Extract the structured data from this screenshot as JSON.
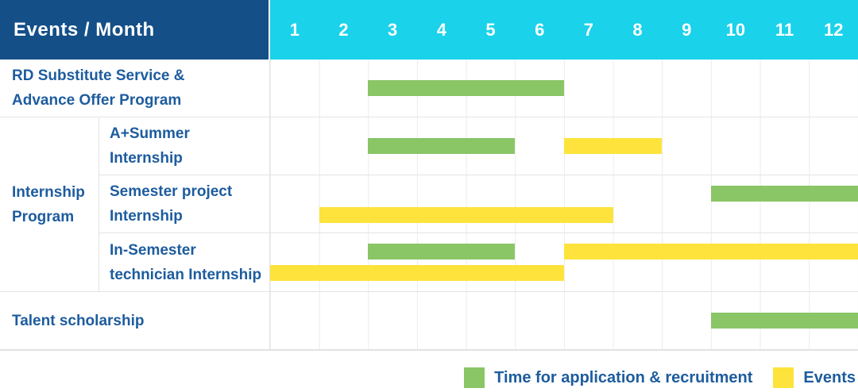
{
  "header": {
    "events_month_label": "Events / Month",
    "months": [
      "1",
      "2",
      "3",
      "4",
      "5",
      "6",
      "7",
      "8",
      "9",
      "10",
      "11",
      "12"
    ]
  },
  "colors": {
    "header_bg": "#144f88",
    "months_bg": "#1ad2ea",
    "application": "#8ac566",
    "events": "#fee33c",
    "label_text": "#1d5c9e",
    "grid_line": "#ececec"
  },
  "body": {
    "rows": [
      {
        "kind": "simple",
        "label_lines": [
          "RD Substitute Service &",
          "Advance Offer Program"
        ],
        "bars": [
          {
            "legend": "application",
            "start_month": 3,
            "end_month": 6,
            "band": "center"
          }
        ]
      },
      {
        "kind": "group",
        "group_label_lines": [
          "Internship",
          "Program"
        ],
        "children": [
          {
            "label_lines": [
              "A+Summer",
              "Internship"
            ],
            "bars": [
              {
                "legend": "application",
                "start_month": 3,
                "end_month": 5,
                "band": "center"
              },
              {
                "legend": "events",
                "start_month": 7,
                "end_month": 8,
                "band": "center"
              }
            ]
          },
          {
            "label_lines": [
              "Semester project",
              "Internship"
            ],
            "bars": [
              {
                "legend": "application",
                "start_month": 10,
                "end_month": 12,
                "band": "top"
              },
              {
                "legend": "events",
                "start_month": 2,
                "end_month": 7,
                "band": "bottom"
              }
            ]
          },
          {
            "label_lines": [
              "In-Semester",
              "technician Internship"
            ],
            "bars": [
              {
                "legend": "application",
                "start_month": 3,
                "end_month": 5,
                "band": "top"
              },
              {
                "legend": "events",
                "start_month": 7,
                "end_month": 12,
                "band": "top"
              },
              {
                "legend": "events",
                "start_month": 1,
                "end_month": 6,
                "band": "bottom"
              }
            ]
          }
        ]
      },
      {
        "kind": "simple",
        "label_lines": [
          "Talent scholarship"
        ],
        "bars": [
          {
            "legend": "application",
            "start_month": 10,
            "end_month": 12,
            "band": "center"
          }
        ]
      }
    ]
  },
  "legend": {
    "items": [
      {
        "key": "application",
        "label": "Time for application & recruitment"
      },
      {
        "key": "events",
        "label": "Events"
      }
    ]
  },
  "chart_data": {
    "type": "gantt",
    "title": "Events / Month",
    "x_axis": {
      "label": "Month",
      "ticks": [
        1,
        2,
        3,
        4,
        5,
        6,
        7,
        8,
        9,
        10,
        11,
        12
      ],
      "range": [
        1,
        12
      ]
    },
    "grid": true,
    "legend_position": "bottom-right",
    "series_legend": [
      "Time for application & recruitment",
      "Events"
    ],
    "tasks": [
      {
        "row": "RD Substitute Service & Advance Offer Program",
        "group": null,
        "series": "Time for application & recruitment",
        "start_month": 3,
        "end_month": 6
      },
      {
        "row": "A+Summer Internship",
        "group": "Internship Program",
        "series": "Time for application & recruitment",
        "start_month": 3,
        "end_month": 5
      },
      {
        "row": "A+Summer Internship",
        "group": "Internship Program",
        "series": "Events",
        "start_month": 7,
        "end_month": 8
      },
      {
        "row": "Semester project Internship",
        "group": "Internship Program",
        "series": "Time for application & recruitment",
        "start_month": 10,
        "end_month": 12
      },
      {
        "row": "Semester project Internship",
        "group": "Internship Program",
        "series": "Events",
        "start_month": 2,
        "end_month": 7
      },
      {
        "row": "In-Semester technician Internship",
        "group": "Internship Program",
        "series": "Time for application & recruitment",
        "start_month": 3,
        "end_month": 5
      },
      {
        "row": "In-Semester technician Internship",
        "group": "Internship Program",
        "series": "Events",
        "start_month": 7,
        "end_month": 12
      },
      {
        "row": "In-Semester technician Internship",
        "group": "Internship Program",
        "series": "Events",
        "start_month": 1,
        "end_month": 6
      },
      {
        "row": "Talent scholarship",
        "group": null,
        "series": "Time for application & recruitment",
        "start_month": 10,
        "end_month": 12
      }
    ]
  }
}
